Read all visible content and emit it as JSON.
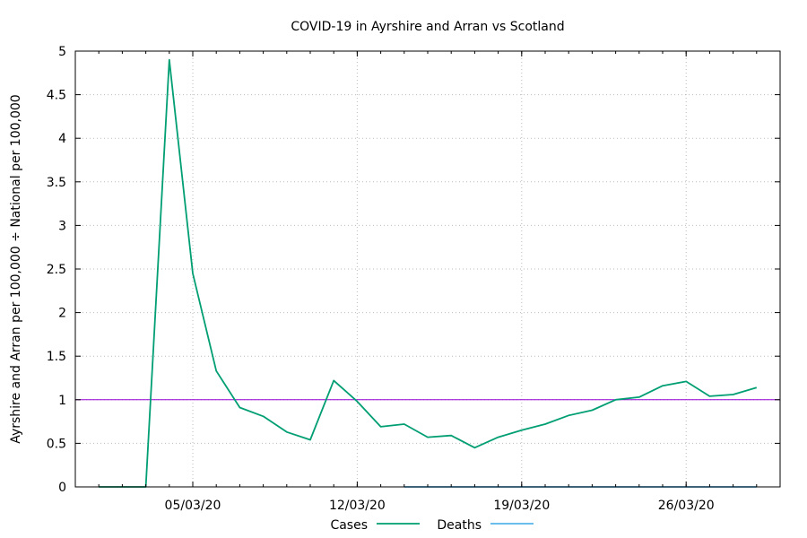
{
  "chart_data": {
    "type": "line",
    "title": "COVID-19 in Ayrshire and Arran vs Scotland",
    "xlabel": "",
    "ylabel": "Ayrshire and Arran per 100,000 ÷ National per 100,000",
    "x": [
      "01/03/20",
      "02/03/20",
      "03/03/20",
      "04/03/20",
      "05/03/20",
      "06/03/20",
      "07/03/20",
      "08/03/20",
      "09/03/20",
      "10/03/20",
      "11/03/20",
      "12/03/20",
      "13/03/20",
      "14/03/20",
      "15/03/20",
      "16/03/20",
      "17/03/20",
      "18/03/20",
      "19/03/20",
      "20/03/20",
      "21/03/20",
      "22/03/20",
      "23/03/20",
      "24/03/20",
      "25/03/20",
      "26/03/20",
      "27/03/20",
      "28/03/20",
      "29/03/20"
    ],
    "xlim": [
      "29/02/20",
      "30/03/20"
    ],
    "x_ticks": [
      "05/03/20",
      "12/03/20",
      "19/03/20",
      "26/03/20"
    ],
    "ylim": [
      0,
      5
    ],
    "y_ticks": [
      "0",
      "0.5",
      "1",
      "1.5",
      "2",
      "2.5",
      "3",
      "3.5",
      "4",
      "4.5",
      "5"
    ],
    "grid": true,
    "legend_position": "bottom-center",
    "reference_line": {
      "y": 1,
      "color": "#9400d3"
    },
    "series": [
      {
        "name": "Cases",
        "color": "#009e73",
        "x": [
          "01/03/20",
          "02/03/20",
          "03/03/20",
          "04/03/20",
          "05/03/20",
          "06/03/20",
          "07/03/20",
          "08/03/20",
          "09/03/20",
          "10/03/20",
          "11/03/20",
          "12/03/20",
          "13/03/20",
          "14/03/20",
          "15/03/20",
          "16/03/20",
          "17/03/20",
          "18/03/20",
          "19/03/20",
          "20/03/20",
          "21/03/20",
          "22/03/20",
          "23/03/20",
          "24/03/20",
          "25/03/20",
          "26/03/20",
          "27/03/20",
          "28/03/20",
          "29/03/20"
        ],
        "values": [
          0,
          0,
          0,
          4.9,
          2.45,
          1.33,
          0.91,
          0.81,
          0.63,
          0.54,
          1.22,
          0.98,
          0.69,
          0.72,
          0.57,
          0.59,
          0.45,
          0.57,
          0.65,
          0.72,
          0.82,
          0.88,
          1.0,
          1.03,
          1.16,
          1.21,
          1.04,
          1.06,
          1.14
        ]
      },
      {
        "name": "Deaths",
        "color": "#56b4e9",
        "x": [
          "14/03/20",
          "15/03/20",
          "16/03/20",
          "17/03/20",
          "18/03/20",
          "19/03/20",
          "20/03/20",
          "21/03/20",
          "22/03/20",
          "23/03/20",
          "24/03/20",
          "25/03/20",
          "26/03/20",
          "27/03/20",
          "28/03/20",
          "29/03/20"
        ],
        "values": [
          0,
          0,
          0,
          0,
          0,
          0,
          0,
          0,
          0,
          0,
          0,
          0,
          0,
          0,
          0,
          0
        ]
      }
    ]
  }
}
